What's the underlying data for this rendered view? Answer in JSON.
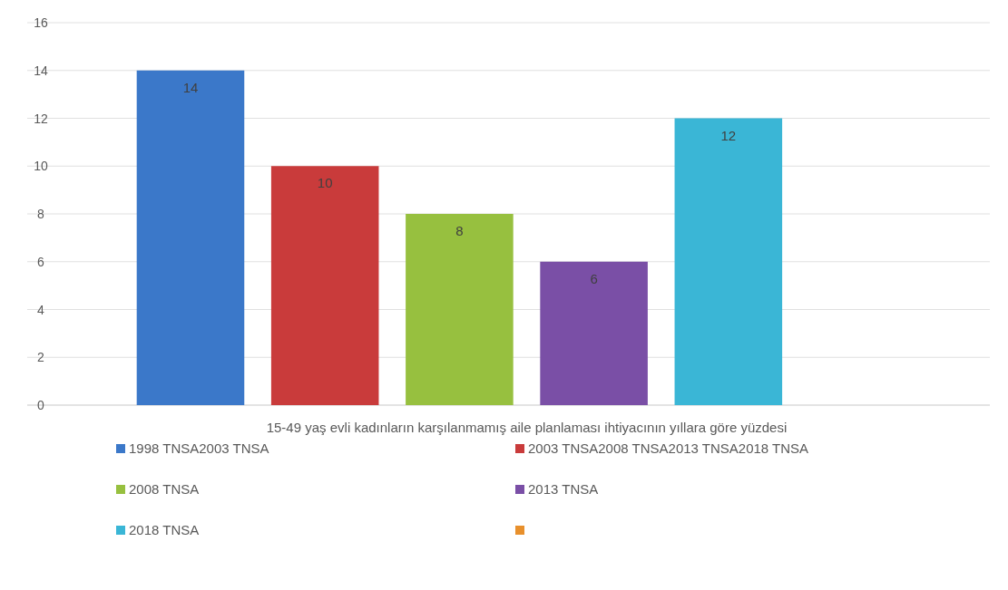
{
  "chart_data": {
    "type": "bar",
    "categories": [
      "15-49 yaş evli kadınların karşılanmamış aile planlaması ihtiyacının yıllara göre yüzdesi"
    ],
    "series": [
      {
        "name": "1998 TNSA2003 TNSA",
        "color": "#3b78c9",
        "values": [
          14
        ]
      },
      {
        "name": "2003 TNSA2008 TNSA2013 TNSA2018 TNSA",
        "color": "#c93b3b",
        "values": [
          10
        ]
      },
      {
        "name": "2008 TNSA",
        "color": "#97c03f",
        "values": [
          8
        ]
      },
      {
        "name": "2013 TNSA",
        "color": "#7a4fa6",
        "values": [
          6
        ]
      },
      {
        "name": "2018 TNSA",
        "color": "#3ab6d6",
        "values": [
          12
        ]
      },
      {
        "color": "#e8902c",
        "values": [
          null
        ]
      }
    ],
    "ylim": [
      0,
      16
    ],
    "yticks": [
      0,
      2,
      4,
      6,
      8,
      10,
      12,
      14,
      16
    ],
    "grid": "y",
    "legend": "bottom",
    "data_labels": true
  }
}
